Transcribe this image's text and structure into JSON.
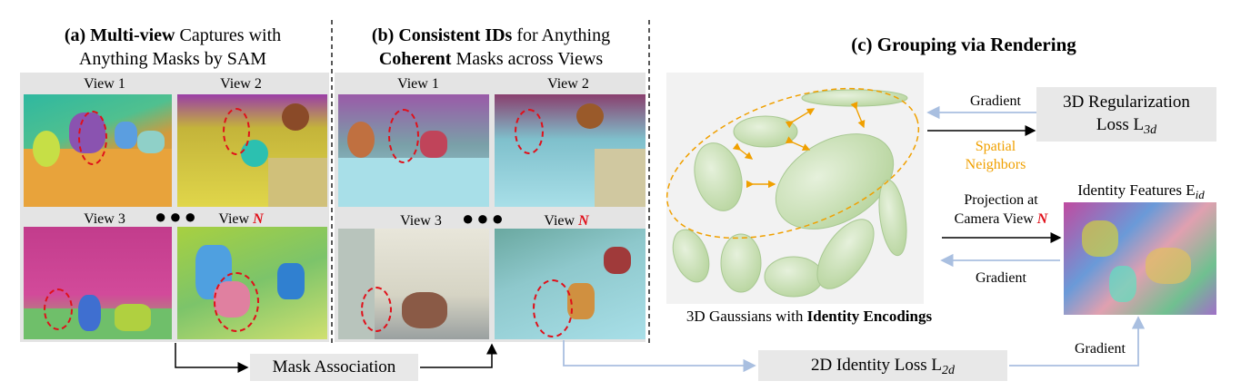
{
  "panel_a": {
    "title_bold": "(a) Multi-view",
    "title_rest": " Captures with",
    "title_line2": "Anything Masks by SAM",
    "views": [
      "View 1",
      "View 2",
      "View 3",
      "View "
    ],
    "view_n_symbol": "N"
  },
  "panel_b": {
    "title_bold": "(b) Consistent IDs",
    "title_rest": " for Anything",
    "title_line2_bold": "Coherent",
    "title_line2_rest": " Masks across Views",
    "views": [
      "View 1",
      "View 2",
      "View 3",
      "View "
    ],
    "view_n_symbol": "N"
  },
  "panel_c": {
    "title": "(c) Grouping via Rendering",
    "gaussians_caption_prefix": "3D Gaussians with ",
    "gaussians_caption_bold": "Identity Encodings",
    "spatial_neighbors_line1": "Spatial",
    "spatial_neighbors_line2": "Neighbors",
    "gradient_top": "Gradient",
    "gradient_mid": "Gradient",
    "gradient_right": "Gradient",
    "projection_line1": "Projection at",
    "projection_line2_prefix": "Camera View ",
    "projection_symbol": "N",
    "reg_loss_line1": "3D Regularization",
    "reg_loss_line2": "Loss L",
    "reg_loss_sub": "3d",
    "identity_features": "Identity Features E",
    "identity_features_sub": "id",
    "identity_loss": "2D Identity Loss L",
    "identity_loss_sub": "2d"
  },
  "mask_association": "Mask Association",
  "colors": {
    "accent_red": "#e0101a",
    "spatial_orange": "#f0a000",
    "arrow_blue": "#a9bfe0",
    "box_gray": "#e8e8e8",
    "ellipse_green": "#c5dcae"
  }
}
